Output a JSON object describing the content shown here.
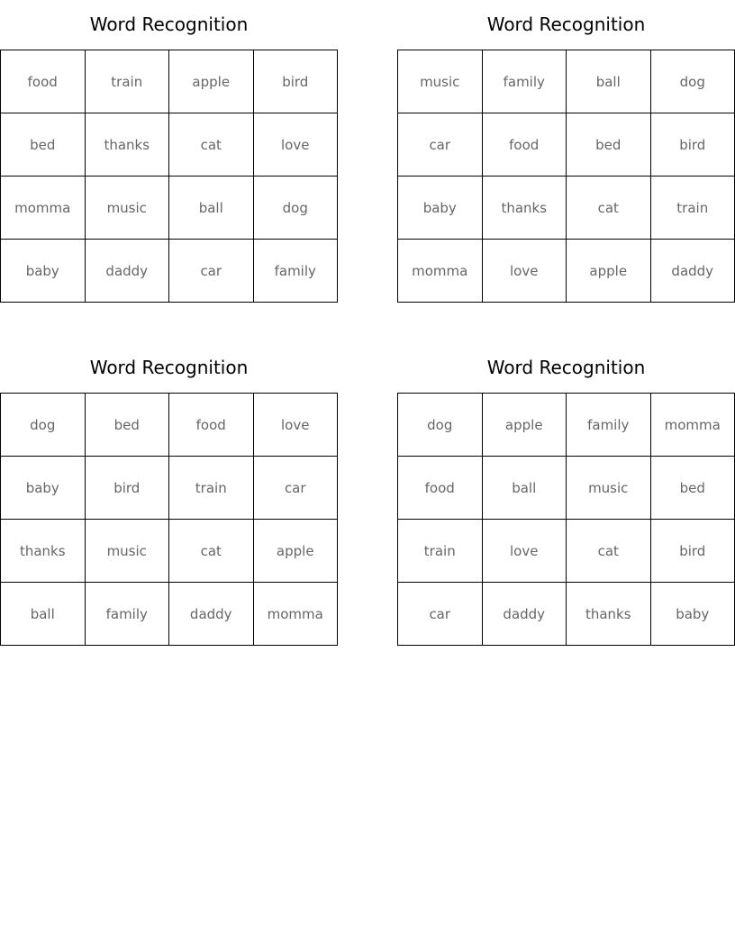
{
  "cards": [
    {
      "title": "Word Recognition",
      "rows": [
        [
          "food",
          "train",
          "apple",
          "bird"
        ],
        [
          "bed",
          "thanks",
          "cat",
          "love"
        ],
        [
          "momma",
          "music",
          "ball",
          "dog"
        ],
        [
          "baby",
          "daddy",
          "car",
          "family"
        ]
      ]
    },
    {
      "title": "Word Recognition",
      "rows": [
        [
          "music",
          "family",
          "ball",
          "dog"
        ],
        [
          "car",
          "food",
          "bed",
          "bird"
        ],
        [
          "baby",
          "thanks",
          "cat",
          "train"
        ],
        [
          "momma",
          "love",
          "apple",
          "daddy"
        ]
      ]
    },
    {
      "title": "Word Recognition",
      "rows": [
        [
          "dog",
          "bed",
          "food",
          "love"
        ],
        [
          "baby",
          "bird",
          "train",
          "car"
        ],
        [
          "thanks",
          "music",
          "cat",
          "apple"
        ],
        [
          "ball",
          "family",
          "daddy",
          "momma"
        ]
      ]
    },
    {
      "title": "Word Recognition",
      "rows": [
        [
          "dog",
          "apple",
          "family",
          "momma"
        ],
        [
          "food",
          "ball",
          "music",
          "bed"
        ],
        [
          "train",
          "love",
          "cat",
          "bird"
        ],
        [
          "car",
          "daddy",
          "thanks",
          "baby"
        ]
      ]
    }
  ]
}
